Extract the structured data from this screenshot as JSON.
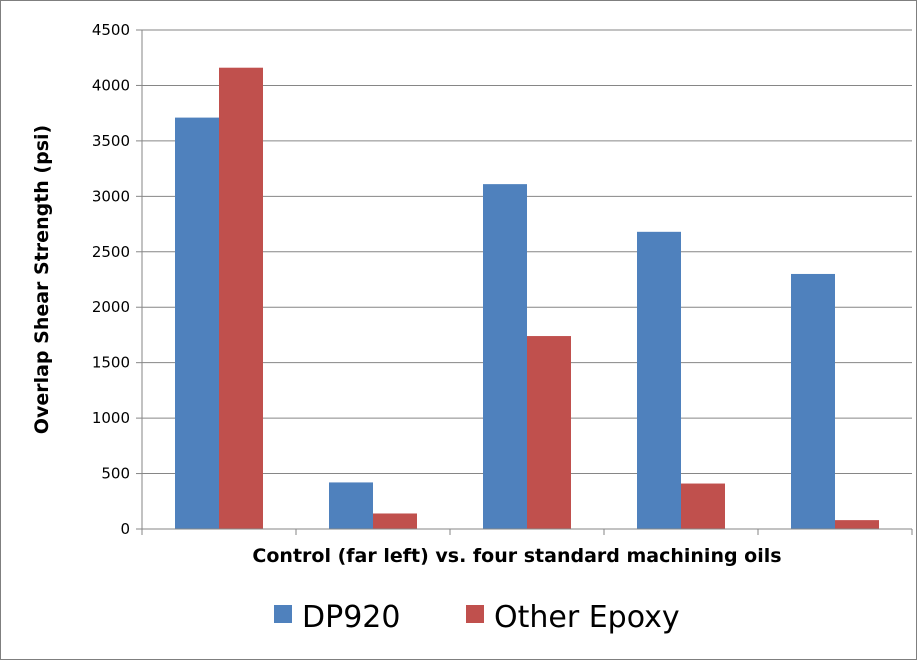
{
  "chart_data": {
    "type": "bar",
    "title": "",
    "xlabel": "Control (far left)  vs. four standard machining oils",
    "ylabel": "Overlap Shear Strength (psi)",
    "ylim": [
      0,
      4500
    ],
    "yticks": [
      0,
      500,
      1000,
      1500,
      2000,
      2500,
      3000,
      3500,
      4000,
      4500
    ],
    "grid": "horizontal",
    "legend_position": "bottom",
    "categories": [
      "",
      "",
      "",
      "",
      ""
    ],
    "series": [
      {
        "name": "DP920",
        "color": "#4f81bd",
        "values": [
          3710,
          420,
          3110,
          2680,
          2300
        ]
      },
      {
        "name": "Other Epoxy",
        "color": "#c0504d",
        "values": [
          4160,
          140,
          1740,
          410,
          80
        ]
      }
    ]
  }
}
